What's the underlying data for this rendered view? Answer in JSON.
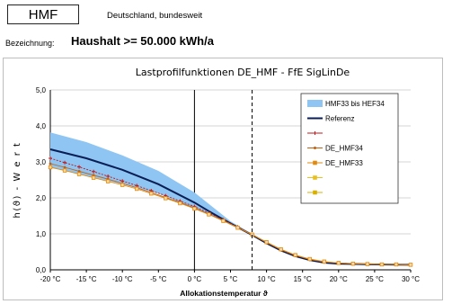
{
  "header": {
    "code": "HMF",
    "region": "Deutschland, bundesweit",
    "bezeichnung_label": "Bezeichnung:",
    "bezeichnung_value": "Haushalt >= 50.000 kWh/a"
  },
  "chart_data": {
    "type": "line",
    "title": "Lastprofilfunktionen  DE_HMF  -  FfE SigLinDe",
    "xlabel": "Allokationstemperatur  ϑ",
    "ylabel": "h(ϑ) - W e r t",
    "xlim": [
      -20,
      30
    ],
    "ylim": [
      0,
      5
    ],
    "x_ticks": [
      -20,
      -15,
      -10,
      -5,
      0,
      5,
      10,
      15,
      20,
      25,
      30
    ],
    "x_tick_labels": [
      "-20 °C",
      "-15 °C",
      "-10 °C",
      "-5 °C",
      "0 °C",
      "5 °C",
      "10 °C",
      "15 °C",
      "20 °C",
      "25 °C",
      "30 °C"
    ],
    "y_ticks": [
      0,
      1,
      2,
      3,
      4,
      5
    ],
    "y_tick_labels": [
      "0,0",
      "1,0",
      "2,0",
      "3,0",
      "4,0",
      "5,0"
    ],
    "vertical_reference_x": 8,
    "grid": "horizontal",
    "legend_position": "top-right",
    "band": {
      "name": "HMF33 bis HEF34",
      "color": "#8ec5f2",
      "x": [
        -20,
        -15,
        -10,
        -5,
        0,
        5,
        8,
        10,
        15,
        20,
        25,
        30
      ],
      "upper": [
        3.82,
        3.55,
        3.18,
        2.75,
        2.15,
        1.35,
        1.0,
        0.62,
        0.28,
        0.18,
        0.15,
        0.14
      ],
      "lower": [
        2.85,
        2.62,
        2.38,
        2.12,
        1.72,
        1.25,
        1.0,
        0.62,
        0.28,
        0.18,
        0.15,
        0.14
      ]
    },
    "series": [
      {
        "name": "Referenz",
        "color": "#0a1e55",
        "marker": "none",
        "x": [
          -20,
          -15,
          -10,
          -5,
          0,
          2,
          4,
          6,
          8,
          10,
          12,
          14,
          16,
          18,
          20,
          25,
          30
        ],
        "values": [
          3.35,
          3.1,
          2.78,
          2.38,
          1.87,
          1.63,
          1.4,
          1.18,
          0.97,
          0.74,
          0.54,
          0.38,
          0.27,
          0.2,
          0.17,
          0.15,
          0.14
        ]
      },
      {
        "name": "",
        "color": "#c01818",
        "marker": "plus",
        "x": [
          -20,
          -18,
          -16,
          -14,
          -12,
          -10,
          -8,
          -6,
          -4,
          -2,
          0,
          2,
          4,
          6,
          8,
          10,
          12,
          14,
          16,
          18,
          20,
          22,
          24,
          26,
          28,
          30
        ],
        "values": [
          3.1,
          2.98,
          2.86,
          2.73,
          2.6,
          2.47,
          2.34,
          2.2,
          2.06,
          1.91,
          1.76,
          1.58,
          1.39,
          1.19,
          0.98,
          0.76,
          0.56,
          0.4,
          0.29,
          0.22,
          0.19,
          0.17,
          0.16,
          0.15,
          0.15,
          0.14
        ]
      },
      {
        "name": "DE_HMF34",
        "color": "#c06010",
        "marker": "dot",
        "x": [
          -20,
          -18,
          -16,
          -14,
          -12,
          -10,
          -8,
          -6,
          -4,
          -2,
          0,
          2,
          4,
          6,
          8,
          10,
          12,
          14,
          16,
          18,
          20,
          22,
          24,
          26,
          28,
          30
        ],
        "values": [
          2.95,
          2.85,
          2.74,
          2.63,
          2.52,
          2.4,
          2.28,
          2.15,
          2.01,
          1.87,
          1.72,
          1.55,
          1.37,
          1.18,
          0.98,
          0.76,
          0.56,
          0.4,
          0.29,
          0.22,
          0.19,
          0.17,
          0.16,
          0.15,
          0.15,
          0.14
        ]
      },
      {
        "name": "DE_HMF33",
        "color": "#e08a10",
        "marker": "square",
        "x": [
          -20,
          -18,
          -16,
          -14,
          -12,
          -10,
          -8,
          -6,
          -4,
          -2,
          0,
          2,
          4,
          6,
          8,
          10,
          12,
          14,
          16,
          18,
          20,
          22,
          24,
          26,
          28,
          30
        ],
        "values": [
          2.85,
          2.76,
          2.66,
          2.56,
          2.46,
          2.36,
          2.25,
          2.12,
          1.99,
          1.85,
          1.7,
          1.54,
          1.36,
          1.17,
          0.98,
          0.77,
          0.57,
          0.41,
          0.3,
          0.23,
          0.19,
          0.17,
          0.16,
          0.15,
          0.15,
          0.14
        ]
      }
    ],
    "legend_entries": [
      {
        "label": "HMF33 bis HEF34",
        "style": "band",
        "color": "#8ec5f2"
      },
      {
        "label": "Referenz",
        "style": "line",
        "color": "#0a1e55"
      },
      {
        "label": "",
        "style": "plus",
        "color": "#c01818"
      },
      {
        "label": "DE_HMF34",
        "style": "dot",
        "color": "#c06010"
      },
      {
        "label": "DE_HMF33",
        "style": "square",
        "color": "#e08a10"
      },
      {
        "label": "",
        "style": "square",
        "color": "#e8c020"
      },
      {
        "label": "",
        "style": "square",
        "color": "#d8b000"
      }
    ]
  }
}
